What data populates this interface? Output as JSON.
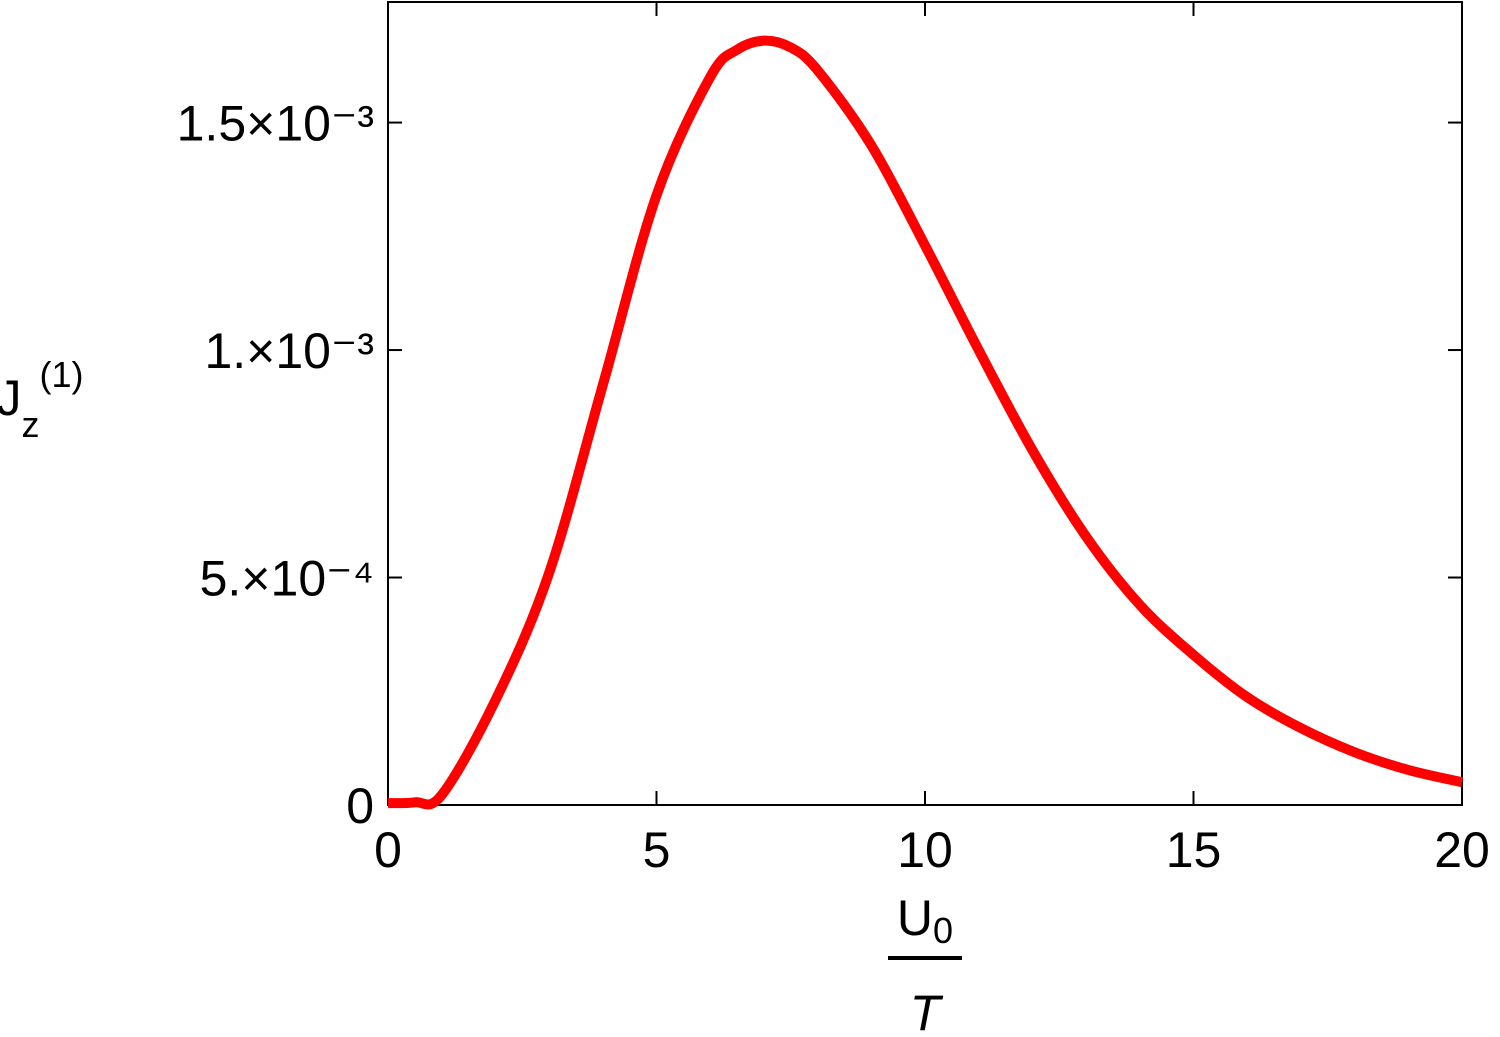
{
  "chart_data": {
    "type": "line",
    "x_label": {
      "numerator": "U",
      "numerator_sub": "0",
      "denominator": "T"
    },
    "y_label": {
      "main": "J",
      "sub": "z",
      "sup": "(1)"
    },
    "x": [
      0,
      0.5,
      1,
      2,
      3,
      4,
      5,
      6,
      6.5,
      7,
      7.5,
      8,
      9,
      10,
      11,
      12,
      13,
      14,
      15,
      16,
      17,
      18,
      19,
      20
    ],
    "series": [
      {
        "color": "#ff0000",
        "values": [
          4e-06,
          6e-06,
          2.2e-05,
          0.00023,
          0.00051,
          0.000923,
          0.00134,
          0.0016,
          0.00166,
          0.00168,
          0.001665,
          0.001615,
          0.00145,
          0.00123,
          0.001,
          0.00078,
          0.00059,
          0.00044,
          0.00033,
          0.000237,
          0.000169,
          0.000116,
          7.7e-05,
          5e-05
        ]
      }
    ],
    "xlim": [
      0,
      20
    ],
    "xticks": [
      0,
      5,
      10,
      15,
      20
    ],
    "ylim": [
      0,
      0.001765
    ],
    "yticks": [
      0,
      {
        "value": 0.0005,
        "label": "5.×10⁻⁴"
      },
      {
        "value": 0.001,
        "label": "1.×10⁻³"
      },
      {
        "value": 0.0015,
        "label": "1.5×10⁻³"
      }
    ],
    "grid": false
  }
}
